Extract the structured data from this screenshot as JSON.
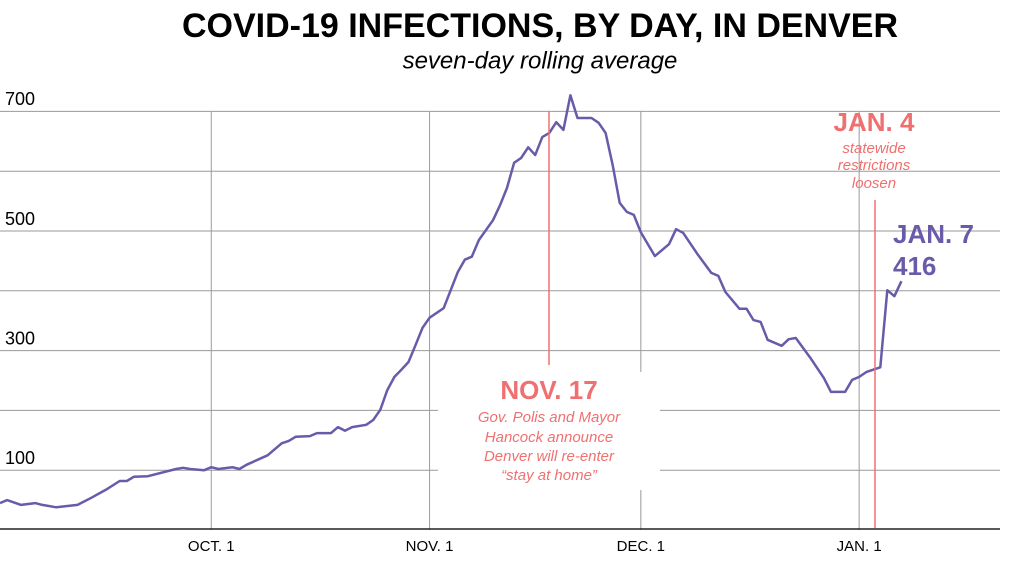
{
  "chart_data": {
    "type": "line",
    "title": "COVID-19 INFECTIONS, BY DAY, IN DENVER",
    "subtitle": "seven-day rolling average",
    "x": [
      0,
      1,
      3,
      5,
      6,
      8,
      11,
      13,
      15,
      17,
      18,
      19,
      21,
      25,
      26,
      27,
      29,
      30,
      31,
      33,
      34,
      35,
      38,
      40,
      41,
      42,
      44,
      45,
      47,
      48,
      49,
      50,
      52,
      53,
      54,
      55,
      56,
      57,
      58,
      59,
      60,
      61,
      63,
      64,
      65,
      66,
      67,
      68,
      70,
      71,
      72,
      73,
      74,
      75,
      76,
      77,
      78,
      79,
      80,
      81,
      82,
      84,
      85,
      86,
      87,
      88,
      89,
      90,
      91,
      93,
      95,
      96,
      97,
      99,
      101,
      102,
      103,
      105,
      106,
      107,
      108,
      109,
      110,
      111,
      112,
      113,
      115,
      117,
      118,
      120,
      121,
      122,
      123,
      124,
      125,
      126,
      127,
      128
    ],
    "values": [
      45,
      50,
      42,
      45,
      42,
      38,
      42,
      54,
      67,
      82,
      82,
      89,
      90,
      102,
      104,
      102,
      100,
      105,
      102,
      105,
      102,
      109,
      125,
      145,
      149,
      156,
      157,
      162,
      162,
      172,
      166,
      172,
      176,
      184,
      201,
      234,
      256,
      268,
      281,
      309,
      338,
      355,
      371,
      401,
      431,
      452,
      457,
      485,
      518,
      543,
      572,
      614,
      622,
      640,
      627,
      657,
      664,
      682,
      669,
      727,
      689,
      689,
      681,
      664,
      610,
      547,
      532,
      527,
      498,
      458,
      478,
      503,
      497,
      462,
      430,
      425,
      398,
      370,
      370,
      351,
      348,
      318,
      313,
      308,
      319,
      321,
      289,
      254,
      231,
      231,
      251,
      256,
      264,
      268,
      272,
      401,
      391,
      416
    ],
    "color": "#6a5aaa",
    "xlim": [
      0,
      142
    ],
    "xticks": [
      {
        "value": 30,
        "label": "OCT. 1"
      },
      {
        "value": 61,
        "label": "NOV. 1"
      },
      {
        "value": 91,
        "label": "DEC. 1"
      },
      {
        "value": 122,
        "label": "JAN. 1"
      }
    ],
    "ylim": [
      0,
      750
    ],
    "yticks": [
      100,
      300,
      500,
      700
    ],
    "minor_yticks": [
      200,
      400,
      600
    ],
    "grid": true,
    "annotations": [
      {
        "label": "NOV. 17",
        "text": [
          "Gov. Polis and Mayor",
          "Hancock announce",
          "Denver will re-enter",
          "“stay at home”"
        ]
      },
      {
        "label": "JAN. 4",
        "text": [
          "statewide",
          "restrictions",
          "loosen"
        ]
      },
      {
        "label": "JAN. 7"
      }
    ]
  }
}
